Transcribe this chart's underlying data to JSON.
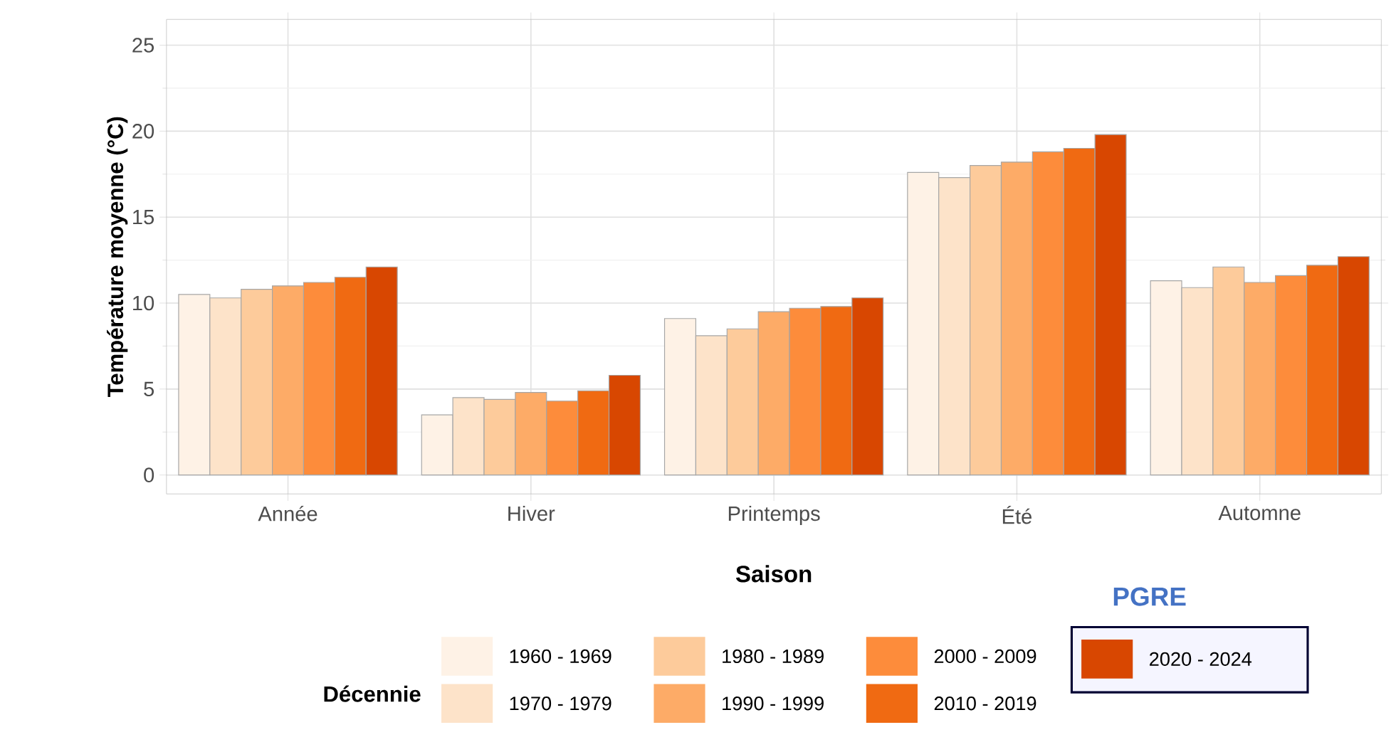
{
  "chart_data": {
    "type": "bar",
    "xlabel": "Saison",
    "ylabel": "Température moyenne (°C)",
    "legend_title": "Décennie",
    "legend": "bottom",
    "grid": true,
    "categories": [
      "Année",
      "Hiver",
      "Printemps",
      "Été",
      "Automne"
    ],
    "ylim": [
      -1.1,
      26.5
    ],
    "yticks": [
      0,
      5,
      10,
      15,
      20,
      25
    ],
    "series": [
      {
        "name": "1960 - 1969",
        "color": "#fef2e6",
        "values": [
          10.5,
          3.5,
          9.1,
          17.6,
          11.3
        ]
      },
      {
        "name": "1970 - 1979",
        "color": "#fde3c9",
        "values": [
          10.3,
          4.5,
          8.1,
          17.3,
          10.9
        ]
      },
      {
        "name": "1980 - 1989",
        "color": "#fdcb9b",
        "values": [
          10.8,
          4.4,
          8.5,
          18.0,
          12.1
        ]
      },
      {
        "name": "1990 - 1999",
        "color": "#fdab67",
        "values": [
          11.0,
          4.8,
          9.5,
          18.2,
          11.2
        ]
      },
      {
        "name": "2000 - 2009",
        "color": "#fd8c3b",
        "values": [
          11.2,
          4.3,
          9.7,
          18.8,
          11.6
        ]
      },
      {
        "name": "2010 - 2019",
        "color": "#f06a12",
        "values": [
          11.5,
          4.9,
          9.8,
          19.0,
          12.2
        ]
      },
      {
        "name": "2020 - 2024",
        "color": "#d84701",
        "values": [
          12.1,
          5.8,
          10.3,
          19.8,
          12.7
        ]
      }
    ],
    "annotations": [
      "PGRE"
    ]
  }
}
